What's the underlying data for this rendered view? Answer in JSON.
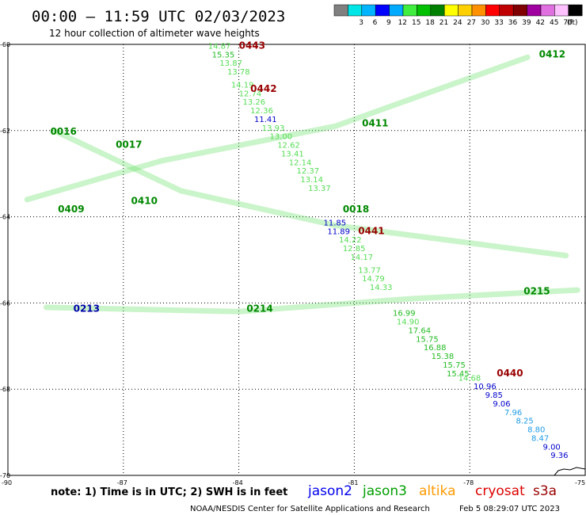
{
  "header": {
    "title": "00:00 – 11:59 UTC 02/03/2023",
    "subtitle": "12 hour collection of altimeter wave heights"
  },
  "colorbar": {
    "unit": "(ft)",
    "bins": [
      {
        "label": "",
        "color": "#808080"
      },
      {
        "label": "3",
        "color": "#00e5e5"
      },
      {
        "label": "6",
        "color": "#00b4ff"
      },
      {
        "label": "9",
        "color": "#0000ff"
      },
      {
        "label": "12",
        "color": "#00aaff"
      },
      {
        "label": "15",
        "color": "#40ee40"
      },
      {
        "label": "18",
        "color": "#00c000"
      },
      {
        "label": "21",
        "color": "#008000"
      },
      {
        "label": "24",
        "color": "#ffff00"
      },
      {
        "label": "27",
        "color": "#ffd000"
      },
      {
        "label": "30",
        "color": "#ff9000"
      },
      {
        "label": "33",
        "color": "#ff0000"
      },
      {
        "label": "36",
        "color": "#c00000"
      },
      {
        "label": "39",
        "color": "#800000"
      },
      {
        "label": "42",
        "color": "#a000a0"
      },
      {
        "label": "45",
        "color": "#e070e0"
      },
      {
        "label": "70",
        "color": "#ffc0ff"
      },
      {
        "label": "",
        "color": "#000000"
      }
    ]
  },
  "axes": {
    "lat_labels": [
      "-60",
      "-62",
      "-64",
      "-66",
      "-68",
      "-70"
    ],
    "lon_labels": [
      "-90",
      "-87",
      "-84",
      "-81",
      "-78",
      "-75"
    ]
  },
  "chart_data": {
    "type": "scatter",
    "xlim": [
      -90,
      -75
    ],
    "ylim": [
      -70,
      -60
    ],
    "passes": [
      {
        "label": "0443",
        "satellite": "cryosat",
        "lon": -84,
        "lat": -60.1
      },
      {
        "label": "0442",
        "satellite": "cryosat",
        "lon": -83.7,
        "lat": -61.1
      },
      {
        "label": "0441",
        "satellite": "cryosat",
        "lon": -80.9,
        "lat": -64.4
      },
      {
        "label": "0440",
        "satellite": "cryosat",
        "lon": -77.3,
        "lat": -67.7
      },
      {
        "label": "0412",
        "satellite": "jason3",
        "lon": -76.2,
        "lat": -60.3
      },
      {
        "label": "0411",
        "satellite": "jason3",
        "lon": -80.8,
        "lat": -61.9
      },
      {
        "label": "0410",
        "satellite": "jason3",
        "lon": -86.8,
        "lat": -63.7
      },
      {
        "label": "0409",
        "satellite": "jason3",
        "lon": -88.7,
        "lat": -63.9
      },
      {
        "label": "0016",
        "satellite": "jason3",
        "lon": -88.9,
        "lat": -62.1
      },
      {
        "label": "0017",
        "satellite": "jason3",
        "lon": -87.2,
        "lat": -62.4
      },
      {
        "label": "0018",
        "satellite": "jason3",
        "lon": -81.3,
        "lat": -63.9
      },
      {
        "label": "0215",
        "satellite": "jason3",
        "lon": -76.6,
        "lat": -65.8
      },
      {
        "label": "0214",
        "satellite": "jason3",
        "lon": -83.8,
        "lat": -66.2
      },
      {
        "label": "0213",
        "satellite": "jason2",
        "lon": -88.3,
        "lat": -66.2
      }
    ],
    "points": [
      {
        "v": "14.87",
        "lon": -84.8,
        "lat": -60.1
      },
      {
        "v": "15.35",
        "lon": -84.7,
        "lat": -60.3
      },
      {
        "v": "13.87",
        "lon": -84.5,
        "lat": -60.5
      },
      {
        "v": "13.78",
        "lon": -84.3,
        "lat": -60.7
      },
      {
        "v": "14.19",
        "lon": -84.2,
        "lat": -61.0
      },
      {
        "v": "12.74",
        "lon": -84.0,
        "lat": -61.2
      },
      {
        "v": "13.26",
        "lon": -83.9,
        "lat": -61.4
      },
      {
        "v": "12.36",
        "lon": -83.7,
        "lat": -61.6
      },
      {
        "v": "11.41",
        "lon": -83.6,
        "lat": -61.8
      },
      {
        "v": "13.93",
        "lon": -83.4,
        "lat": -62.0
      },
      {
        "v": "13.00",
        "lon": -83.2,
        "lat": -62.2
      },
      {
        "v": "12.62",
        "lon": -83.0,
        "lat": -62.4
      },
      {
        "v": "13.41",
        "lon": -82.9,
        "lat": -62.6
      },
      {
        "v": "12.14",
        "lon": -82.7,
        "lat": -62.8
      },
      {
        "v": "12.37",
        "lon": -82.5,
        "lat": -63.0
      },
      {
        "v": "13.14",
        "lon": -82.4,
        "lat": -63.2
      },
      {
        "v": "13.37",
        "lon": -82.2,
        "lat": -63.4
      },
      {
        "v": "11.85",
        "lon": -81.8,
        "lat": -64.2
      },
      {
        "v": "11.89",
        "lon": -81.7,
        "lat": -64.4
      },
      {
        "v": "14.22",
        "lon": -81.4,
        "lat": -64.6
      },
      {
        "v": "12.85",
        "lon": -81.3,
        "lat": -64.8
      },
      {
        "v": "14.17",
        "lon": -81.1,
        "lat": -65.0
      },
      {
        "v": "13.77",
        "lon": -80.9,
        "lat": -65.3
      },
      {
        "v": "14.79",
        "lon": -80.8,
        "lat": -65.5
      },
      {
        "v": "14.33",
        "lon": -80.6,
        "lat": -65.7
      },
      {
        "v": "16.99",
        "lon": -80.0,
        "lat": -66.3
      },
      {
        "v": "14.90",
        "lon": -79.9,
        "lat": -66.5
      },
      {
        "v": "17.64",
        "lon": -79.6,
        "lat": -66.7
      },
      {
        "v": "15.75",
        "lon": -79.4,
        "lat": -66.9
      },
      {
        "v": "16.88",
        "lon": -79.2,
        "lat": -67.1
      },
      {
        "v": "15.38",
        "lon": -79.0,
        "lat": -67.3
      },
      {
        "v": "15.75",
        "lon": -78.7,
        "lat": -67.5
      },
      {
        "v": "15.45",
        "lon": -78.6,
        "lat": -67.7
      },
      {
        "v": "14.68",
        "lon": -78.3,
        "lat": -67.8
      },
      {
        "v": "10.96",
        "lon": -77.9,
        "lat": -68.0
      },
      {
        "v": "9.85",
        "lon": -77.6,
        "lat": -68.2
      },
      {
        "v": "9.06",
        "lon": -77.4,
        "lat": -68.4
      },
      {
        "v": "7.96",
        "lon": -77.1,
        "lat": -68.6
      },
      {
        "v": "8.25",
        "lon": -76.8,
        "lat": -68.8
      },
      {
        "v": "8.80",
        "lon": -76.5,
        "lat": -69.0
      },
      {
        "v": "8.47",
        "lon": -76.4,
        "lat": -69.2
      },
      {
        "v": "9.00",
        "lon": -76.1,
        "lat": -69.4
      },
      {
        "v": "9.36",
        "lon": -75.9,
        "lat": -69.6
      }
    ]
  },
  "legend": {
    "note": "note:  1) Time is in UTC;  2) SWH is in feet",
    "satellites": [
      {
        "name": "jason2",
        "color": "#0000ee"
      },
      {
        "name": "jason3",
        "color": "#00a000"
      },
      {
        "name": "altika",
        "color": "#ff9900"
      },
      {
        "name": "cryosat",
        "color": "#dd0000"
      },
      {
        "name": "s3a",
        "color": "#990000"
      }
    ]
  },
  "footer": {
    "credit": "NOAA/NESDIS Center for Satellite Applications and Research",
    "timestamp": "Feb  5 08:29:07 UTC 2023"
  }
}
